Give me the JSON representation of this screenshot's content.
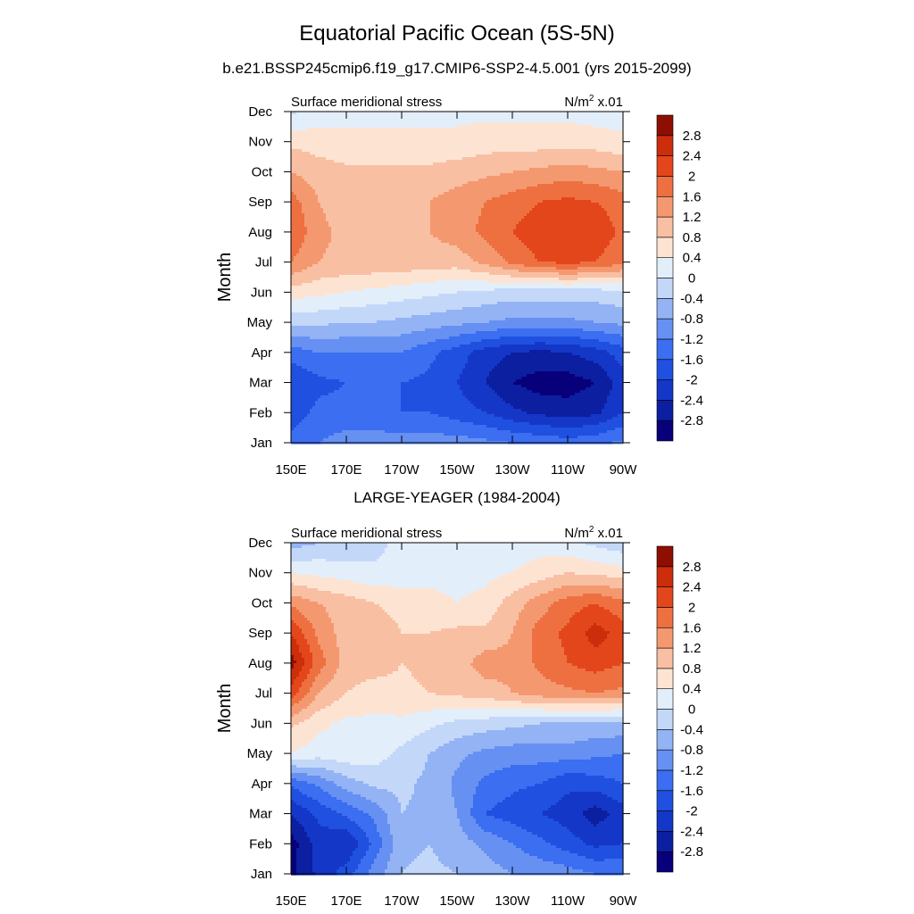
{
  "figure": {
    "title": "Equatorial Pacific Ocean (5S-5N)",
    "subtitle": "b.e21.BSSP245cmip6.f19_g17.CMIP6-SSP2-4.5.001 (yrs 2015-2099)"
  },
  "colorbar": {
    "levels": [
      -2.8,
      -2.4,
      -2,
      -1.6,
      -1.2,
      -0.8,
      -0.4,
      0,
      0.4,
      0.8,
      1.2,
      1.6,
      2,
      2.4,
      2.8
    ],
    "level_labels": [
      "-2.8",
      "-2.4",
      "-2",
      "-1.6",
      "-1.2",
      "-0.8",
      "-0.4",
      "0",
      "0.4",
      "0.8",
      "1.2",
      "1.6",
      "2",
      "2.4",
      "2.8"
    ],
    "colors": [
      "#08007a",
      "#0b1fa0",
      "#1537c8",
      "#2050e0",
      "#3b6ef0",
      "#6690f2",
      "#93b3f5",
      "#c3d7f8",
      "#e3eefb",
      "#fde4d2",
      "#f9bfa3",
      "#f4996f",
      "#ee7041",
      "#e4461c",
      "#cc2d0a",
      "#8f0e02"
    ]
  },
  "chart_data": [
    {
      "type": "heatmap",
      "title": "",
      "left_label": "Surface meridional stress",
      "units_label": "N/m",
      "units_sup": "2",
      "units_scale": " x.01",
      "ylabel": "Month",
      "x_ticks": [
        "150E",
        "170E",
        "170W",
        "150W",
        "130W",
        "110W",
        "90W"
      ],
      "x_range": [
        150,
        270
      ],
      "y_ticks": [
        "Jan",
        "Feb",
        "Mar",
        "Apr",
        "May",
        "Jun",
        "Jul",
        "Aug",
        "Sep",
        "Oct",
        "Nov",
        "Dec"
      ],
      "lon": [
        150,
        160,
        170,
        180,
        190,
        200,
        210,
        220,
        230,
        240,
        250,
        260,
        270
      ],
      "values": [
        [
          -1.5,
          -1.2,
          -1.0,
          -1.0,
          -1.0,
          -1.0,
          -1.0,
          -1.1,
          -1.2,
          -1.3,
          -1.4,
          -1.3,
          -1.1
        ],
        [
          -1.8,
          -1.5,
          -1.5,
          -1.5,
          -1.6,
          -1.6,
          -1.8,
          -2.0,
          -2.3,
          -2.5,
          -2.6,
          -2.5,
          -2.0
        ],
        [
          -2.0,
          -1.7,
          -1.6,
          -1.6,
          -1.6,
          -1.7,
          -2.0,
          -2.4,
          -2.8,
          -3.0,
          -3.0,
          -2.8,
          -2.2
        ],
        [
          -1.4,
          -1.2,
          -1.2,
          -1.2,
          -1.2,
          -1.5,
          -1.8,
          -2.2,
          -2.4,
          -2.5,
          -2.4,
          -2.2,
          -1.8
        ],
        [
          -0.3,
          -0.3,
          -0.4,
          -0.4,
          -0.5,
          -0.6,
          -0.7,
          -0.8,
          -0.9,
          -0.9,
          -0.9,
          -0.8,
          -0.7
        ],
        [
          0.6,
          0.5,
          0.4,
          0.3,
          0.2,
          0.1,
          0.0,
          -0.1,
          -0.2,
          -0.2,
          -0.2,
          -0.2,
          -0.1
        ],
        [
          1.6,
          1.2,
          1.1,
          1.1,
          1.1,
          1.0,
          1.0,
          1.3,
          1.7,
          2.0,
          2.1,
          2.0,
          1.7
        ],
        [
          2.0,
          1.3,
          1.1,
          1.1,
          1.2,
          1.2,
          1.4,
          1.7,
          2.0,
          2.3,
          2.4,
          2.3,
          1.9
        ],
        [
          1.8,
          1.2,
          1.0,
          1.0,
          1.1,
          1.2,
          1.4,
          1.6,
          1.8,
          2.0,
          2.1,
          2.0,
          1.8
        ],
        [
          1.2,
          1.0,
          0.9,
          0.9,
          0.9,
          0.9,
          1.0,
          1.1,
          1.2,
          1.3,
          1.4,
          1.3,
          1.2
        ],
        [
          0.7,
          0.6,
          0.5,
          0.5,
          0.5,
          0.5,
          0.5,
          0.6,
          0.6,
          0.6,
          0.6,
          0.6,
          0.5
        ],
        [
          -0.1,
          0.2,
          0.3,
          0.3,
          0.3,
          0.3,
          0.3,
          0.3,
          0.3,
          0.3,
          0.3,
          0.2,
          0.2
        ]
      ]
    },
    {
      "type": "heatmap",
      "title": "LARGE-YEAGER (1984-2004)",
      "left_label": "Surface meridional stress",
      "units_label": "N/m",
      "units_sup": "2",
      "units_scale": " x.01",
      "ylabel": "Month",
      "x_ticks": [
        "150E",
        "170E",
        "170W",
        "150W",
        "130W",
        "110W",
        "90W"
      ],
      "x_range": [
        150,
        270
      ],
      "y_ticks": [
        "Jan",
        "Feb",
        "Mar",
        "Apr",
        "May",
        "Jun",
        "Jul",
        "Aug",
        "Sep",
        "Oct",
        "Nov",
        "Dec"
      ],
      "lon": [
        150,
        160,
        170,
        180,
        190,
        200,
        210,
        220,
        230,
        240,
        250,
        260,
        270
      ],
      "values": [
        [
          -2.9,
          -2.3,
          -1.8,
          -1.0,
          -0.4,
          -0.3,
          -0.4,
          -0.6,
          -0.8,
          -0.9,
          -1.0,
          -1.2,
          -1.2
        ],
        [
          -3.0,
          -2.2,
          -2.4,
          -1.5,
          -0.5,
          -0.4,
          -0.6,
          -0.9,
          -1.2,
          -1.5,
          -1.8,
          -2.1,
          -2.0
        ],
        [
          -2.4,
          -1.9,
          -1.5,
          -1.1,
          -0.4,
          -0.5,
          -0.8,
          -1.6,
          -1.8,
          -2.0,
          -2.2,
          -2.6,
          -2.2
        ],
        [
          -1.5,
          -1.1,
          -0.6,
          -0.3,
          -0.3,
          -0.5,
          -0.9,
          -1.3,
          -1.5,
          -1.6,
          -1.9,
          -1.8,
          -1.6
        ],
        [
          0.4,
          0.2,
          0.3,
          0.2,
          -0.1,
          -0.4,
          -0.7,
          -0.9,
          -1.0,
          -1.0,
          -1.0,
          -1.1,
          -1.2
        ],
        [
          0.9,
          0.5,
          0.3,
          0.3,
          0.3,
          0.1,
          -0.1,
          -0.2,
          -0.3,
          -0.4,
          -0.4,
          -0.5,
          -0.5
        ],
        [
          2.2,
          1.2,
          0.8,
          0.6,
          0.7,
          0.8,
          0.9,
          1.0,
          1.2,
          1.4,
          1.5,
          1.6,
          1.5
        ],
        [
          3.0,
          1.8,
          1.0,
          1.0,
          0.8,
          0.9,
          1.0,
          1.4,
          1.3,
          1.7,
          2.0,
          2.2,
          2.0
        ],
        [
          2.4,
          1.5,
          1.0,
          1.2,
          0.8,
          0.8,
          0.9,
          0.9,
          1.2,
          1.8,
          2.1,
          2.6,
          2.2
        ],
        [
          1.5,
          1.2,
          1.0,
          0.8,
          0.6,
          0.5,
          0.4,
          0.5,
          1.0,
          1.4,
          1.8,
          2.0,
          1.7
        ],
        [
          0.4,
          0.3,
          0.2,
          0.1,
          0.2,
          0.3,
          0.3,
          0.3,
          0.4,
          0.6,
          0.8,
          0.7,
          0.6
        ],
        [
          -0.6,
          -0.4,
          -0.3,
          -0.2,
          0.2,
          0.3,
          0.3,
          0.3,
          0.2,
          0.2,
          0.1,
          -0.1,
          -0.3
        ]
      ]
    }
  ]
}
